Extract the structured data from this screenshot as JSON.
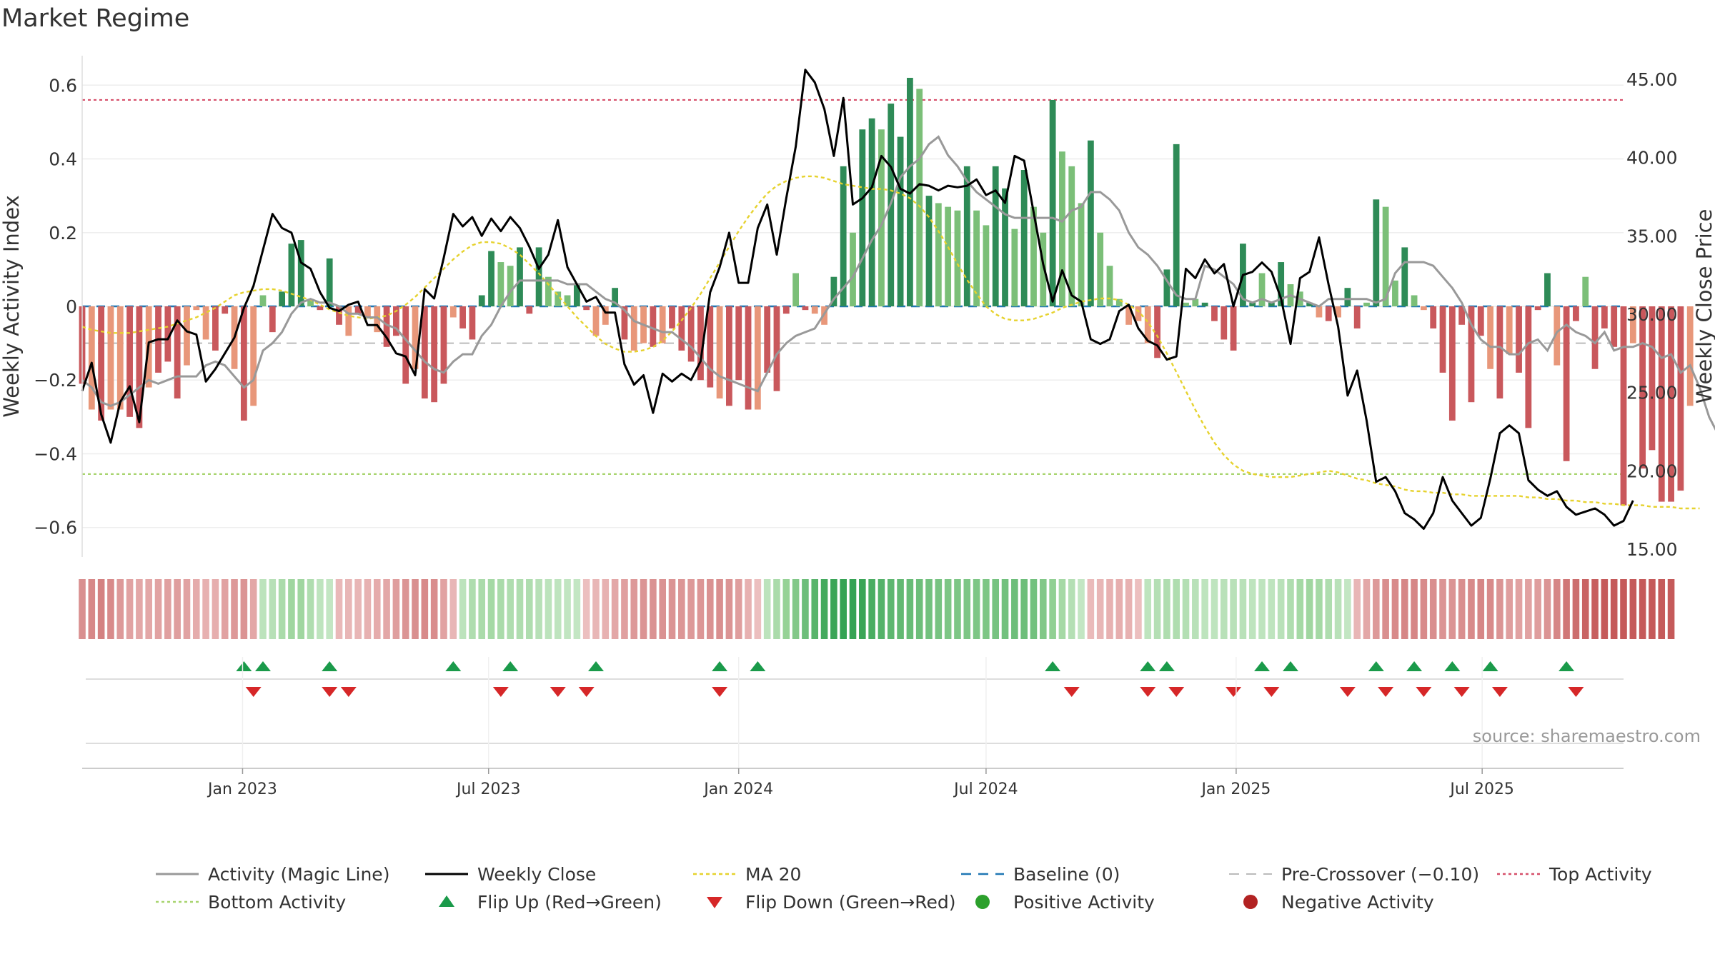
{
  "page": {
    "title": "Market Regime"
  },
  "colors": {
    "bar_strong_green": "#2e8b57",
    "bar_light_green": "#7bbf78",
    "bar_strong_red": "#c9585c",
    "bar_light_red": "#e8977a",
    "magic_line": "#999999",
    "weekly_close": "#000000",
    "ma20": "#e6d22e",
    "baseline": "#1f77b4",
    "pre_crossover": "#bbbbbb",
    "top_activity": "#d6506a",
    "bottom_activity": "#a8d46f",
    "flip_up": "#1a9a4a",
    "flip_down": "#d62728",
    "positive_activity": "#2ca02c",
    "negative_activity": "#b22222"
  },
  "chart_data": {
    "type": "bar",
    "title": "Market Regime",
    "source": "source: sharemaestro.com",
    "x_start": "2022-09-05",
    "x_end": "2025-10-13",
    "x_step_days": 7,
    "x_ticks": [
      {
        "date": "2023-01-01",
        "label": "Jan 2023"
      },
      {
        "date": "2023-07-01",
        "label": "Jul 2023"
      },
      {
        "date": "2024-01-01",
        "label": "Jan 2024"
      },
      {
        "date": "2024-07-01",
        "label": "Jul 2024"
      },
      {
        "date": "2025-01-01",
        "label": "Jan 2025"
      },
      {
        "date": "2025-07-01",
        "label": "Jul 2025"
      }
    ],
    "y_left": {
      "label": "Weekly Activity Index",
      "lim": [
        -0.68,
        0.68
      ],
      "ticks": [
        {
          "v": 0.6,
          "label": "0.6"
        },
        {
          "v": 0.4,
          "label": "0.4"
        },
        {
          "v": 0.2,
          "label": "0.2"
        },
        {
          "v": 0,
          "label": "0"
        },
        {
          "v": -0.2,
          "label": "−0.2"
        },
        {
          "v": -0.4,
          "label": "−0.4"
        },
        {
          "v": -0.6,
          "label": "−0.6"
        }
      ]
    },
    "y_right": {
      "label": "Weekly Close Price",
      "lim": [
        14.5,
        46.5
      ],
      "ticks": [
        {
          "v": 45,
          "label": "45.00"
        },
        {
          "v": 40,
          "label": "40.00"
        },
        {
          "v": 35,
          "label": "35.00"
        },
        {
          "v": 30,
          "label": "30.00"
        },
        {
          "v": 25,
          "label": "25.00"
        },
        {
          "v": 20,
          "label": "20.00"
        },
        {
          "v": 15,
          "label": "15.00"
        }
      ]
    },
    "reference_lines": {
      "top_activity": 0.56,
      "bottom_activity": -0.455,
      "pre_crossover": -0.1,
      "baseline": 0
    },
    "activity": [
      -0.21,
      -0.28,
      -0.31,
      -0.28,
      -0.28,
      -0.3,
      -0.33,
      -0.22,
      -0.18,
      -0.15,
      -0.25,
      -0.16,
      -0.01,
      -0.09,
      -0.12,
      -0.02,
      -0.17,
      -0.31,
      -0.27,
      0.03,
      -0.07,
      0.04,
      0.17,
      0.18,
      0.02,
      -0.01,
      0.13,
      -0.05,
      -0.08,
      -0.02,
      -0.03,
      -0.07,
      -0.11,
      -0.08,
      -0.21,
      -0.17,
      -0.25,
      -0.26,
      -0.21,
      -0.03,
      -0.06,
      -0.09,
      0.03,
      0.15,
      0.12,
      0.11,
      0.16,
      -0.02,
      0.16,
      0.08,
      0.04,
      0.03,
      0.06,
      -0.01,
      -0.08,
      -0.05,
      0.05,
      -0.09,
      -0.12,
      -0.1,
      -0.11,
      -0.1,
      -0.06,
      -0.12,
      -0.15,
      -0.2,
      -0.22,
      -0.25,
      -0.27,
      -0.2,
      -0.28,
      -0.28,
      -0.18,
      -0.23,
      -0.02,
      0.09,
      -0.01,
      -0.02,
      -0.05,
      0.08,
      0.38,
      0.2,
      0.48,
      0.51,
      0.48,
      0.55,
      0.46,
      0.62,
      0.59,
      0.3,
      0.28,
      0.27,
      0.26,
      0.38,
      0.26,
      0.22,
      0.38,
      0.32,
      0.21,
      0.37,
      0.27,
      0.2,
      0.56,
      0.42,
      0.38,
      0.28,
      0.45,
      0.2,
      0.11,
      0.02,
      -0.05,
      -0.04,
      -0.1,
      -0.14,
      0.1,
      0.44,
      0.01,
      0.02,
      0.01,
      -0.04,
      -0.09,
      -0.12,
      0.17,
      0.01,
      0.09,
      0.01,
      0.12,
      0.06,
      0.04,
      0.01,
      -0.03,
      -0.04,
      -0.03,
      0.05,
      -0.06,
      0.01,
      0.29,
      0.27,
      0.07,
      0.16,
      0.03,
      -0.01,
      -0.06,
      -0.18,
      -0.31,
      -0.05,
      -0.26,
      -0.08,
      -0.17,
      -0.25,
      -0.13,
      -0.18,
      -0.33,
      -0.01,
      0.09,
      -0.16,
      -0.42,
      -0.04,
      0.08,
      -0.17,
      -0.06,
      -0.11,
      -0.54,
      -0.1,
      -0.44,
      -0.39,
      -0.53,
      -0.53,
      -0.5,
      -0.27
    ],
    "activity_bright": [
      1,
      0,
      1,
      0,
      0,
      1,
      1,
      0,
      1,
      1,
      1,
      0,
      0,
      0,
      1,
      1,
      0,
      1,
      0,
      0,
      1,
      1,
      1,
      1,
      0,
      1,
      1,
      1,
      0,
      1,
      0,
      0,
      1,
      1,
      1,
      0,
      1,
      1,
      1,
      0,
      1,
      1,
      1,
      1,
      0,
      0,
      1,
      1,
      1,
      0,
      0,
      0,
      1,
      1,
      0,
      0,
      1,
      1,
      0,
      0,
      1,
      0,
      1,
      1,
      1,
      1,
      1,
      0,
      1,
      1,
      1,
      0,
      1,
      1,
      1,
      0,
      1,
      0,
      0,
      1,
      1,
      0,
      1,
      1,
      0,
      1,
      1,
      1,
      0,
      1,
      0,
      0,
      0,
      1,
      0,
      0,
      1,
      1,
      0,
      1,
      0,
      0,
      1,
      0,
      0,
      0,
      1,
      0,
      0,
      0,
      0,
      0,
      0,
      1,
      1,
      1,
      0,
      0,
      1,
      1,
      1,
      1,
      1,
      1,
      0,
      1,
      1,
      0,
      0,
      1,
      0,
      1,
      0,
      1,
      1,
      0,
      1,
      0,
      0,
      1,
      0,
      0,
      1,
      1,
      1,
      1,
      1,
      1,
      0,
      1,
      0,
      1,
      1,
      1,
      1,
      0,
      1,
      1,
      0,
      1,
      1,
      1,
      1,
      0,
      1,
      1,
      1,
      1,
      1,
      0,
      0
    ],
    "magic_line": [
      -0.2,
      -0.22,
      -0.26,
      -0.27,
      -0.26,
      -0.24,
      -0.22,
      -0.2,
      -0.21,
      -0.2,
      -0.19,
      -0.19,
      -0.19,
      -0.16,
      -0.15,
      -0.16,
      -0.19,
      -0.22,
      -0.2,
      -0.12,
      -0.1,
      -0.07,
      -0.02,
      0.01,
      0.02,
      0.01,
      0.01,
      0,
      -0.02,
      -0.02,
      -0.03,
      -0.03,
      -0.05,
      -0.06,
      -0.09,
      -0.12,
      -0.15,
      -0.17,
      -0.18,
      -0.15,
      -0.13,
      -0.13,
      -0.08,
      -0.05,
      0,
      0.04,
      0.07,
      0.07,
      0.07,
      0.07,
      0.07,
      0.06,
      0.06,
      0.06,
      0.04,
      0.02,
      0.01,
      -0.01,
      -0.04,
      -0.05,
      -0.06,
      -0.07,
      -0.07,
      -0.09,
      -0.11,
      -0.14,
      -0.17,
      -0.19,
      -0.2,
      -0.21,
      -0.22,
      -0.23,
      -0.18,
      -0.13,
      -0.1,
      -0.08,
      -0.07,
      -0.06,
      -0.02,
      0.02,
      0.05,
      0.08,
      0.13,
      0.18,
      0.22,
      0.28,
      0.35,
      0.38,
      0.4,
      0.44,
      0.46,
      0.41,
      0.38,
      0.34,
      0.31,
      0.29,
      0.27,
      0.25,
      0.24,
      0.24,
      0.24,
      0.24,
      0.24,
      0.23,
      0.26,
      0.27,
      0.31,
      0.31,
      0.29,
      0.26,
      0.2,
      0.16,
      0.14,
      0.11,
      0.07,
      0.03,
      0.02,
      0.02,
      0.11,
      0.1,
      0.08,
      0.06,
      0.02,
      0.01,
      0.02,
      0.01,
      0.02,
      0.03,
      0.02,
      0.01,
      0,
      0.02,
      0.02,
      0.02,
      0.02,
      0.02,
      0.01,
      0.02,
      0.09,
      0.12,
      0.12,
      0.12,
      0.11,
      0.08,
      0.05,
      0.01,
      -0.05,
      -0.09,
      -0.11,
      -0.11,
      -0.13,
      -0.13,
      -0.1,
      -0.09,
      -0.12,
      -0.07,
      -0.05,
      -0.07,
      -0.08,
      -0.1,
      -0.07,
      -0.12,
      -0.11,
      -0.11,
      -0.1,
      -0.11,
      -0.14,
      -0.13,
      -0.18,
      -0.16,
      -0.22,
      -0.3,
      -0.35,
      -0.37,
      -0.35
    ],
    "weekly_close": [
      25.1,
      26.9,
      23.6,
      21.8,
      24.4,
      25.4,
      23.1,
      28.2,
      28.4,
      28.4,
      29.6,
      28.9,
      28.7,
      25.7,
      26.5,
      27.5,
      28.5,
      30.4,
      31.8,
      34.1,
      36.4,
      35.5,
      35.2,
      33.3,
      32.9,
      31.4,
      30.4,
      30.2,
      30.6,
      30.8,
      29.3,
      29.3,
      28.5,
      27.5,
      27.3,
      26.1,
      31.6,
      31,
      33.6,
      36.4,
      35.6,
      36.2,
      35,
      36.1,
      35.3,
      36.2,
      35.5,
      34.3,
      32.9,
      33.8,
      36,
      33,
      31.9,
      30.8,
      31.1,
      30.1,
      30.1,
      26.8,
      25.5,
      26.1,
      23.7,
      26.2,
      25.7,
      26.2,
      25.8,
      27,
      31.4,
      33,
      35.2,
      32,
      32,
      35.5,
      37,
      33.8,
      37.4,
      40.7,
      45.6,
      44.8,
      43.1,
      40.1,
      43.8,
      37,
      37.4,
      38.1,
      40.1,
      39.4,
      38,
      37.7,
      38.3,
      38.2,
      37.9,
      38.2,
      38.1,
      38.2,
      38.6,
      37.6,
      37.9,
      37.1,
      40.1,
      39.8,
      36.5,
      33.2,
      30.8,
      32.8,
      31.2,
      30.8,
      28.4,
      28.1,
      28.4,
      30.2,
      30.6,
      29.1,
      28.3,
      28,
      27.1,
      27.3,
      32.9,
      32.3,
      33.5,
      32.6,
      33.2,
      30.5,
      32.5,
      32.7,
      33.3,
      32.7,
      31,
      28.1,
      32.3,
      32.7,
      34.9,
      31.9,
      29.2,
      24.8,
      26.4,
      23.2,
      19.3,
      19.6,
      18.7,
      17.3,
      16.9,
      16.3,
      17.3,
      19.6,
      18.1,
      17.3,
      16.5,
      17,
      19.5,
      22.4,
      22.9,
      22.4,
      19.4,
      18.8,
      18.4,
      18.7,
      17.7,
      17.2,
      17.4,
      17.6,
      17.2,
      16.5,
      16.8,
      18.1
    ],
    "ma20": [
      29.2,
      29,
      28.9,
      28.8,
      28.8,
      28.8,
      28.9,
      29,
      29.1,
      29.2,
      29.4,
      29.6,
      29.8,
      30.1,
      30.4,
      30.8,
      31.2,
      31.4,
      31.5,
      31.6,
      31.6,
      31.5,
      31.3,
      31.1,
      30.9,
      30.6,
      30.3,
      30.1,
      29.9,
      29.8,
      29.7,
      29.8,
      29.9,
      30.2,
      30.6,
      31.1,
      31.7,
      32.3,
      32.9,
      33.5,
      34,
      34.4,
      34.6,
      34.6,
      34.5,
      34.2,
      33.8,
      33.2,
      32.6,
      31.9,
      31.2,
      30.5,
      29.8,
      29.2,
      28.6,
      28.1,
      27.8,
      27.6,
      27.6,
      27.7,
      27.9,
      28.3,
      28.9,
      29.6,
      30.4,
      31.3,
      32.3,
      33.3,
      34.3,
      35.3,
      36.2,
      37,
      37.7,
      38.2,
      38.5,
      38.7,
      38.8,
      38.8,
      38.7,
      38.5,
      38.3,
      38.2,
      38.1,
      38,
      38,
      37.9,
      37.7,
      37.4,
      36.9,
      36.2,
      35.3,
      34.3,
      33.2,
      32.2,
      31.3,
      30.5,
      30,
      29.7,
      29.6,
      29.6,
      29.7,
      29.9,
      30.1,
      30.4,
      30.6,
      30.8,
      30.9,
      31,
      31,
      30.9,
      30.6,
      30.2,
      29.5,
      28.6,
      27.5,
      26.3,
      25.1,
      23.9,
      22.8,
      21.8,
      21,
      20.4,
      20,
      19.8,
      19.7,
      19.6,
      19.6,
      19.6,
      19.7,
      19.8,
      19.9,
      20,
      19.9,
      19.7,
      19.5,
      19.4,
      19.2,
      19.1,
      19,
      18.8,
      18.7,
      18.7,
      18.6,
      18.6,
      18.5,
      18.5,
      18.4,
      18.4,
      18.4,
      18.4,
      18.4,
      18.4,
      18.3,
      18.3,
      18.2,
      18.2,
      18.1,
      18.1,
      18,
      18,
      17.9,
      17.9,
      17.8,
      17.8,
      17.8,
      17.7,
      17.7,
      17.7,
      17.6,
      17.6,
      17.6
    ],
    "regime_strip": [
      -0.22,
      -0.25,
      -0.28,
      -0.24,
      -0.18,
      -0.14,
      -0.12,
      -0.12,
      -0.14,
      -0.15,
      -0.16,
      -0.14,
      -0.1,
      -0.08,
      -0.09,
      -0.14,
      -0.18,
      -0.2,
      -0.12,
      0.05,
      0.07,
      0.12,
      0.16,
      0.16,
      0.1,
      0.04,
      0.02,
      -0.05,
      -0.06,
      -0.06,
      -0.08,
      -0.1,
      -0.12,
      -0.16,
      -0.2,
      -0.22,
      -0.24,
      -0.23,
      -0.14,
      -0.06,
      0.05,
      0.1,
      0.12,
      0.14,
      0.12,
      0.1,
      0.1,
      0.1,
      0.07,
      0.05,
      0.04,
      0.03,
      0.02,
      -0.02,
      -0.06,
      -0.08,
      -0.12,
      -0.15,
      -0.18,
      -0.2,
      -0.21,
      -0.21,
      -0.2,
      -0.19,
      -0.18,
      -0.19,
      -0.21,
      -0.22,
      -0.2,
      -0.16,
      -0.08,
      -0.02,
      0.05,
      0.12,
      0.2,
      0.28,
      0.36,
      0.44,
      0.52,
      0.56,
      0.58,
      0.58,
      0.56,
      0.5,
      0.46,
      0.42,
      0.4,
      0.38,
      0.36,
      0.34,
      0.32,
      0.3,
      0.3,
      0.3,
      0.3,
      0.3,
      0.32,
      0.34,
      0.36,
      0.36,
      0.34,
      0.28,
      0.22,
      0.14,
      0.08,
      0.02,
      -0.04,
      -0.06,
      -0.08,
      -0.09,
      -0.08,
      -0.02,
      0.04,
      0.08,
      0.1,
      0.1,
      0.08,
      0.06,
      0.04,
      0.04,
      0.06,
      0.06,
      0.06,
      0.04,
      0.04,
      0.04,
      0.06,
      0.1,
      0.14,
      0.16,
      0.14,
      0.1,
      0.06,
      0.02,
      -0.06,
      -0.12,
      -0.18,
      -0.22,
      -0.24,
      -0.26,
      -0.26,
      -0.24,
      -0.22,
      -0.2,
      -0.2,
      -0.22,
      -0.24,
      -0.26,
      -0.24,
      -0.2,
      -0.16,
      -0.14,
      -0.14,
      -0.16,
      -0.2,
      -0.26,
      -0.32,
      -0.36,
      -0.4,
      -0.42,
      -0.44,
      -0.44,
      -0.44,
      -0.44,
      -0.44,
      -0.44,
      -0.44,
      -0.44
    ],
    "flip_up_dates": [
      "2023-01-02",
      "2023-01-16",
      "2023-03-06",
      "2023-06-05",
      "2023-07-17",
      "2023-09-18",
      "2023-12-18",
      "2024-01-15",
      "2024-08-19",
      "2024-10-28",
      "2024-11-11",
      "2025-01-20",
      "2025-02-10",
      "2025-04-14",
      "2025-05-12",
      "2025-06-09",
      "2025-07-07",
      "2025-09-01"
    ],
    "flip_down_dates": [
      "2023-01-09",
      "2023-03-06",
      "2023-03-20",
      "2023-07-10",
      "2023-08-21",
      "2023-09-11",
      "2023-12-18",
      "2024-09-02",
      "2024-10-28",
      "2024-11-18",
      "2024-12-30",
      "2025-01-27",
      "2025-03-24",
      "2025-04-21",
      "2025-05-19",
      "2025-06-16",
      "2025-07-14",
      "2025-09-08"
    ],
    "legend": [
      {
        "key": "magic",
        "label": "Activity (Magic Line)"
      },
      {
        "key": "close",
        "label": "Weekly Close"
      },
      {
        "key": "ma20",
        "label": "MA 20"
      },
      {
        "key": "baseline",
        "label": "Baseline (0)"
      },
      {
        "key": "precross",
        "label": "Pre-Crossover (−0.10)"
      },
      {
        "key": "top",
        "label": "Top Activity"
      },
      {
        "key": "bottom",
        "label": "Bottom Activity"
      },
      {
        "key": "flipup",
        "label": "Flip Up (Red→Green)"
      },
      {
        "key": "flipdown",
        "label": "Flip Down (Green→Red)"
      },
      {
        "key": "pos",
        "label": "Positive Activity"
      },
      {
        "key": "neg",
        "label": "Negative Activity"
      }
    ],
    "legend_placement": "bottom",
    "grid": true
  }
}
